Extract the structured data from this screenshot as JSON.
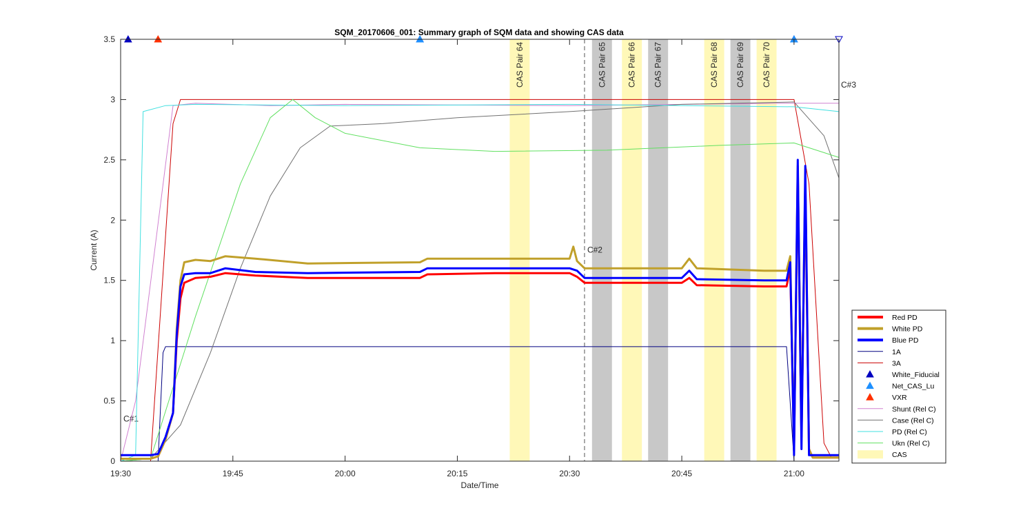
{
  "chart_data": {
    "type": "line",
    "title": "SQM_20170606_001: Summary graph of SQM data and showing CAS data",
    "xlabel": "Date/Time",
    "ylabel": "Current (A)",
    "xlim": [
      "19:30",
      "21:06"
    ],
    "ylim": [
      0,
      3.5
    ],
    "x_ticks": [
      "19:30",
      "19:45",
      "20:00",
      "20:15",
      "20:30",
      "20:45",
      "21:00"
    ],
    "y_ticks": [
      "0",
      "0.5",
      "1",
      "1.5",
      "2",
      "2.5",
      "3",
      "3.5"
    ],
    "grid": false,
    "legend_position": "bottom-right outside",
    "cas_bands": [
      {
        "label": "CAS Pair 64",
        "start": "20:22",
        "end": "20:24:40",
        "color": "#fff8b8"
      },
      {
        "label": "CAS Pair 65",
        "start": "20:33",
        "end": "20:35:40",
        "color": "#c8c8c8"
      },
      {
        "label": "CAS Pair 66",
        "start": "20:37",
        "end": "20:39:40",
        "color": "#fff8b8"
      },
      {
        "label": "CAS Pair 67",
        "start": "20:40:30",
        "end": "20:43:10",
        "color": "#c8c8c8"
      },
      {
        "label": "CAS Pair 68",
        "start": "20:48",
        "end": "20:50:40",
        "color": "#fff8b8"
      },
      {
        "label": "CAS Pair 69",
        "start": "20:51:30",
        "end": "20:54:10",
        "color": "#c8c8c8"
      },
      {
        "label": "CAS Pair 70",
        "start": "20:55",
        "end": "20:57:40",
        "color": "#fff8b8"
      }
    ],
    "markers": [
      {
        "label": "C#1",
        "x": "19:30",
        "label_y": 0.33
      },
      {
        "label": "C#2",
        "x": "20:32",
        "label_y": 1.73
      },
      {
        "label": "C#3",
        "x": "21:06",
        "label_y": 3.1
      }
    ],
    "series": [
      {
        "name": "Red PD",
        "color": "#ff0000",
        "width": 3,
        "points": [
          [
            "19:30",
            0.02
          ],
          [
            "19:34",
            0.02
          ],
          [
            "19:35",
            0.04
          ],
          [
            "19:36",
            0.18
          ],
          [
            "19:37",
            0.4
          ],
          [
            "19:37:30",
            1.0
          ],
          [
            "19:38",
            1.35
          ],
          [
            "19:38:30",
            1.48
          ],
          [
            "19:40",
            1.52
          ],
          [
            "19:42",
            1.53
          ],
          [
            "19:44",
            1.56
          ],
          [
            "19:48",
            1.54
          ],
          [
            "19:55",
            1.52
          ],
          [
            "20:10",
            1.52
          ],
          [
            "20:11",
            1.55
          ],
          [
            "20:20",
            1.56
          ],
          [
            "20:30",
            1.56
          ],
          [
            "20:31",
            1.53
          ],
          [
            "20:32",
            1.48
          ],
          [
            "20:45",
            1.48
          ],
          [
            "20:46",
            1.52
          ],
          [
            "20:47",
            1.46
          ],
          [
            "20:56",
            1.45
          ],
          [
            "20:59",
            1.45
          ],
          [
            "20:59:30",
            1.6
          ],
          [
            "21:00",
            0.1
          ],
          [
            "21:00:30",
            2.4
          ],
          [
            "21:01",
            0.2
          ],
          [
            "21:01:30",
            2.3
          ],
          [
            "21:02",
            0.1
          ],
          [
            "21:02:30",
            0.03
          ],
          [
            "21:06",
            0.03
          ]
        ]
      },
      {
        "name": "White PD",
        "color": "#c0a02a",
        "width": 3,
        "points": [
          [
            "19:30",
            0.02
          ],
          [
            "19:34",
            0.02
          ],
          [
            "19:35",
            0.04
          ],
          [
            "19:36",
            0.18
          ],
          [
            "19:37",
            0.4
          ],
          [
            "19:37:30",
            1.1
          ],
          [
            "19:38",
            1.5
          ],
          [
            "19:38:30",
            1.65
          ],
          [
            "19:40",
            1.67
          ],
          [
            "19:42",
            1.66
          ],
          [
            "19:44",
            1.7
          ],
          [
            "19:48",
            1.68
          ],
          [
            "19:55",
            1.64
          ],
          [
            "20:10",
            1.65
          ],
          [
            "20:11",
            1.68
          ],
          [
            "20:20",
            1.68
          ],
          [
            "20:30",
            1.68
          ],
          [
            "20:30:30",
            1.78
          ],
          [
            "20:31",
            1.66
          ],
          [
            "20:32",
            1.6
          ],
          [
            "20:45",
            1.6
          ],
          [
            "20:46",
            1.68
          ],
          [
            "20:47",
            1.6
          ],
          [
            "20:56",
            1.58
          ],
          [
            "20:59",
            1.58
          ],
          [
            "20:59:30",
            1.7
          ],
          [
            "21:00",
            0.1
          ],
          [
            "21:00:30",
            2.45
          ],
          [
            "21:01",
            0.2
          ],
          [
            "21:01:30",
            2.35
          ],
          [
            "21:02",
            0.1
          ],
          [
            "21:02:30",
            0.03
          ],
          [
            "21:06",
            0.03
          ]
        ]
      },
      {
        "name": "Blue PD",
        "color": "#0000ff",
        "width": 3,
        "points": [
          [
            "19:30",
            0.05
          ],
          [
            "19:34",
            0.05
          ],
          [
            "19:35",
            0.06
          ],
          [
            "19:36",
            0.2
          ],
          [
            "19:37",
            0.4
          ],
          [
            "19:37:30",
            1.05
          ],
          [
            "19:38",
            1.45
          ],
          [
            "19:38:30",
            1.55
          ],
          [
            "19:40",
            1.56
          ],
          [
            "19:42",
            1.56
          ],
          [
            "19:44",
            1.6
          ],
          [
            "19:48",
            1.57
          ],
          [
            "19:55",
            1.56
          ],
          [
            "20:10",
            1.57
          ],
          [
            "20:11",
            1.6
          ],
          [
            "20:20",
            1.6
          ],
          [
            "20:30",
            1.6
          ],
          [
            "20:31",
            1.58
          ],
          [
            "20:32",
            1.52
          ],
          [
            "20:45",
            1.52
          ],
          [
            "20:46",
            1.58
          ],
          [
            "20:47",
            1.51
          ],
          [
            "20:56",
            1.5
          ],
          [
            "20:59",
            1.5
          ],
          [
            "20:59:30",
            1.65
          ],
          [
            "21:00",
            0.05
          ],
          [
            "21:00:30",
            2.5
          ],
          [
            "21:01",
            0.1
          ],
          [
            "21:01:30",
            2.45
          ],
          [
            "21:02",
            0.05
          ],
          [
            "21:02:30",
            0.05
          ],
          [
            "21:06",
            0.05
          ]
        ]
      },
      {
        "name": "1A",
        "color": "#000080",
        "width": 1,
        "points": [
          [
            "19:30",
            0.0
          ],
          [
            "19:35",
            0.0
          ],
          [
            "19:35:40",
            0.9
          ],
          [
            "19:36",
            0.95
          ],
          [
            "20:59",
            0.95
          ],
          [
            "21:00",
            0.0
          ],
          [
            "21:06",
            0.0
          ]
        ]
      },
      {
        "name": "3A",
        "color": "#cc0000",
        "width": 1,
        "points": [
          [
            "19:30",
            0.0
          ],
          [
            "19:34",
            0.0
          ],
          [
            "19:37",
            2.8
          ],
          [
            "19:38",
            3.0
          ],
          [
            "21:00",
            3.0
          ],
          [
            "21:02",
            2.3
          ],
          [
            "21:04",
            0.15
          ],
          [
            "21:05",
            0.03
          ],
          [
            "21:06",
            0.03
          ]
        ]
      },
      {
        "name": "Shunt (Rel C)",
        "color": "#d080d0",
        "width": 1,
        "points": [
          [
            "19:30",
            0.0
          ],
          [
            "19:32",
            0.5
          ],
          [
            "19:37",
            2.95
          ],
          [
            "19:40",
            2.97
          ],
          [
            "19:50",
            2.95
          ],
          [
            "20:00",
            2.96
          ],
          [
            "20:30",
            2.95
          ],
          [
            "21:00",
            2.97
          ],
          [
            "21:06",
            2.97
          ]
        ]
      },
      {
        "name": "Case (Rel C)",
        "color": "#707070",
        "width": 1,
        "points": [
          [
            "19:30",
            0.0
          ],
          [
            "19:34",
            0.02
          ],
          [
            "19:38",
            0.3
          ],
          [
            "19:42",
            0.9
          ],
          [
            "19:46",
            1.6
          ],
          [
            "19:50",
            2.2
          ],
          [
            "19:54",
            2.6
          ],
          [
            "19:58",
            2.78
          ],
          [
            "20:05",
            2.8
          ],
          [
            "20:15",
            2.85
          ],
          [
            "20:30",
            2.9
          ],
          [
            "20:45",
            2.96
          ],
          [
            "21:00",
            2.98
          ],
          [
            "21:04",
            2.7
          ],
          [
            "21:06",
            2.35
          ]
        ]
      },
      {
        "name": "PD (Rel C)",
        "color": "#40e0e0",
        "width": 1,
        "points": [
          [
            "19:30",
            0.0
          ],
          [
            "19:32",
            0.05
          ],
          [
            "19:33",
            2.9
          ],
          [
            "19:36",
            2.95
          ],
          [
            "19:40",
            2.96
          ],
          [
            "20:00",
            2.95
          ],
          [
            "20:30",
            2.96
          ],
          [
            "21:00",
            2.94
          ],
          [
            "21:06",
            2.9
          ]
        ]
      },
      {
        "name": "Ukn (Rel C)",
        "color": "#60e060",
        "width": 1,
        "points": [
          [
            "19:30",
            0.0
          ],
          [
            "19:34",
            0.02
          ],
          [
            "19:40",
            1.2
          ],
          [
            "19:46",
            2.3
          ],
          [
            "19:50",
            2.85
          ],
          [
            "19:53",
            3.0
          ],
          [
            "19:56",
            2.85
          ],
          [
            "20:00",
            2.72
          ],
          [
            "20:10",
            2.6
          ],
          [
            "20:20",
            2.57
          ],
          [
            "20:35",
            2.58
          ],
          [
            "20:50",
            2.62
          ],
          [
            "21:00",
            2.64
          ],
          [
            "21:06",
            2.52
          ]
        ]
      }
    ],
    "scatter_markers": [
      {
        "series": "White_Fiducial",
        "color": "#0000c0",
        "shape": "triangle",
        "points": [
          [
            "19:31",
            3.5
          ],
          [
            "20:10",
            3.5
          ],
          [
            "21:00",
            3.5
          ]
        ]
      },
      {
        "series": "Net_CAS_Lu",
        "color": "#1e90ff",
        "shape": "triangle",
        "points": [
          [
            "20:10",
            3.5
          ],
          [
            "21:00",
            3.5
          ]
        ]
      },
      {
        "series": "VXR",
        "color": "#ff3000",
        "shape": "triangle",
        "points": [
          [
            "19:35",
            3.5
          ]
        ]
      },
      {
        "series": "",
        "color": "#0000c0",
        "shape": "triangle-down",
        "points": [
          [
            "21:06",
            3.5
          ]
        ]
      }
    ],
    "legend": [
      {
        "name": "Red PD",
        "kind": "line",
        "color": "#ff0000",
        "width": 4
      },
      {
        "name": "White PD",
        "kind": "line",
        "color": "#c0a02a",
        "width": 4
      },
      {
        "name": "Blue PD",
        "kind": "line",
        "color": "#0000ff",
        "width": 4
      },
      {
        "name": "1A",
        "kind": "line",
        "color": "#000080",
        "width": 1
      },
      {
        "name": "3A",
        "kind": "line",
        "color": "#cc0000",
        "width": 1
      },
      {
        "name": "White_Fiducial",
        "kind": "triangle",
        "color": "#0000c0"
      },
      {
        "name": "Net_CAS_Lu",
        "kind": "triangle",
        "color": "#1e90ff"
      },
      {
        "name": "VXR",
        "kind": "triangle",
        "color": "#ff3000"
      },
      {
        "name": "Shunt (Rel C)",
        "kind": "line",
        "color": "#d080d0",
        "width": 1
      },
      {
        "name": "Case (Rel C)",
        "kind": "line",
        "color": "#707070",
        "width": 1
      },
      {
        "name": "PD (Rel C)",
        "kind": "line",
        "color": "#40e0e0",
        "width": 1
      },
      {
        "name": "Ukn (Rel C)",
        "kind": "line",
        "color": "#60e060",
        "width": 1
      },
      {
        "name": "CAS",
        "kind": "patch",
        "color": "#fff8b8"
      }
    ]
  }
}
